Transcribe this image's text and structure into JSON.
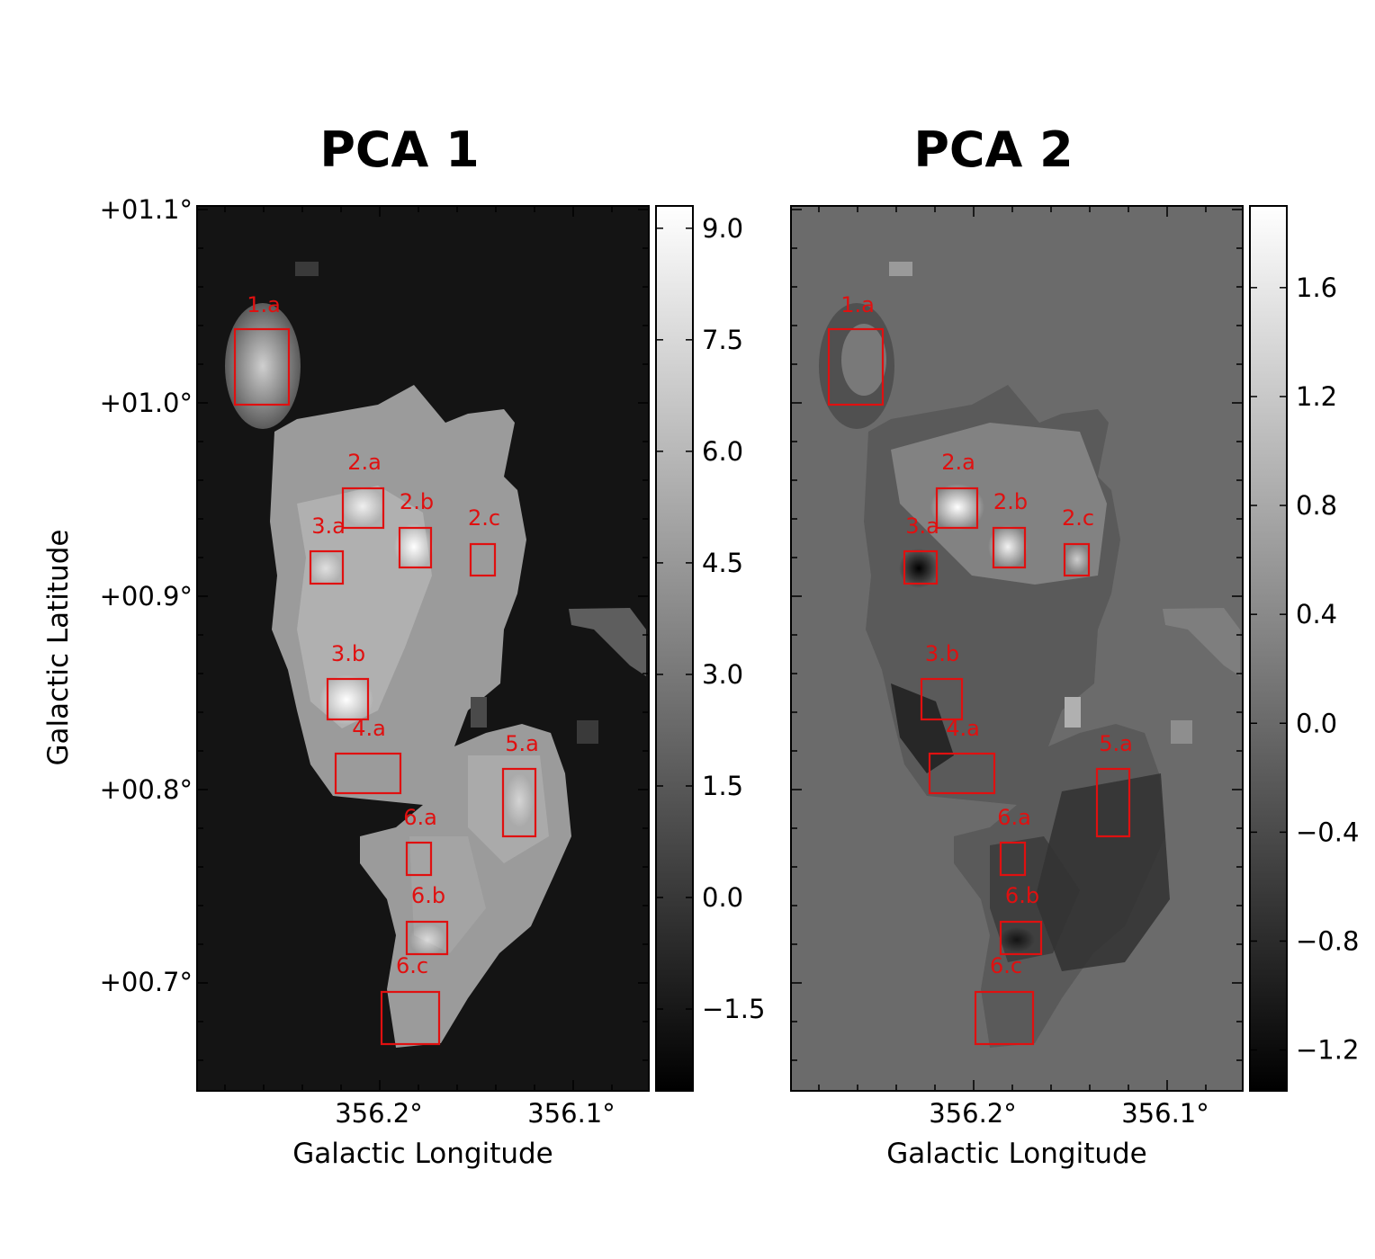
{
  "chart_data": [
    {
      "type": "heatmap",
      "title": "PCA 1",
      "xlabel": "Galactic Longitude",
      "ylabel": "Galactic Latitude",
      "x_ticks": [
        "356.2°",
        "356.1°"
      ],
      "y_ticks": [
        "+01.1°",
        "+01.0°",
        "+00.9°",
        "+00.8°",
        "+00.7°"
      ],
      "colorbar": {
        "ticks": [
          "9.0",
          "7.5",
          "6.0",
          "4.5",
          "3.0",
          "1.5",
          "0.0",
          "−1.5"
        ],
        "vmin": -2.6,
        "vmax": 9.3
      },
      "regions": [
        "1.a",
        "2.a",
        "2.b",
        "2.c",
        "3.a",
        "3.b",
        "4.a",
        "5.a",
        "6.a",
        "6.b",
        "6.c"
      ],
      "grid": false
    },
    {
      "type": "heatmap",
      "title": "PCA 2",
      "xlabel": "Galactic Longitude",
      "ylabel": "",
      "x_ticks": [
        "356.2°",
        "356.1°"
      ],
      "y_ticks": [],
      "colorbar": {
        "ticks": [
          "1.6",
          "1.2",
          "0.8",
          "0.4",
          "0.0",
          "−0.4",
          "−0.8",
          "−1.2"
        ],
        "vmin": -1.35,
        "vmax": 1.9
      },
      "regions": [
        "1.a",
        "2.a",
        "2.b",
        "2.c",
        "3.a",
        "3.b",
        "4.a",
        "5.a",
        "6.a",
        "6.b",
        "6.c"
      ],
      "grid": false
    }
  ],
  "colors": {
    "region_box": "#e01010",
    "background_pca1": "#141414",
    "background_pca2": "#6b6b6b"
  }
}
